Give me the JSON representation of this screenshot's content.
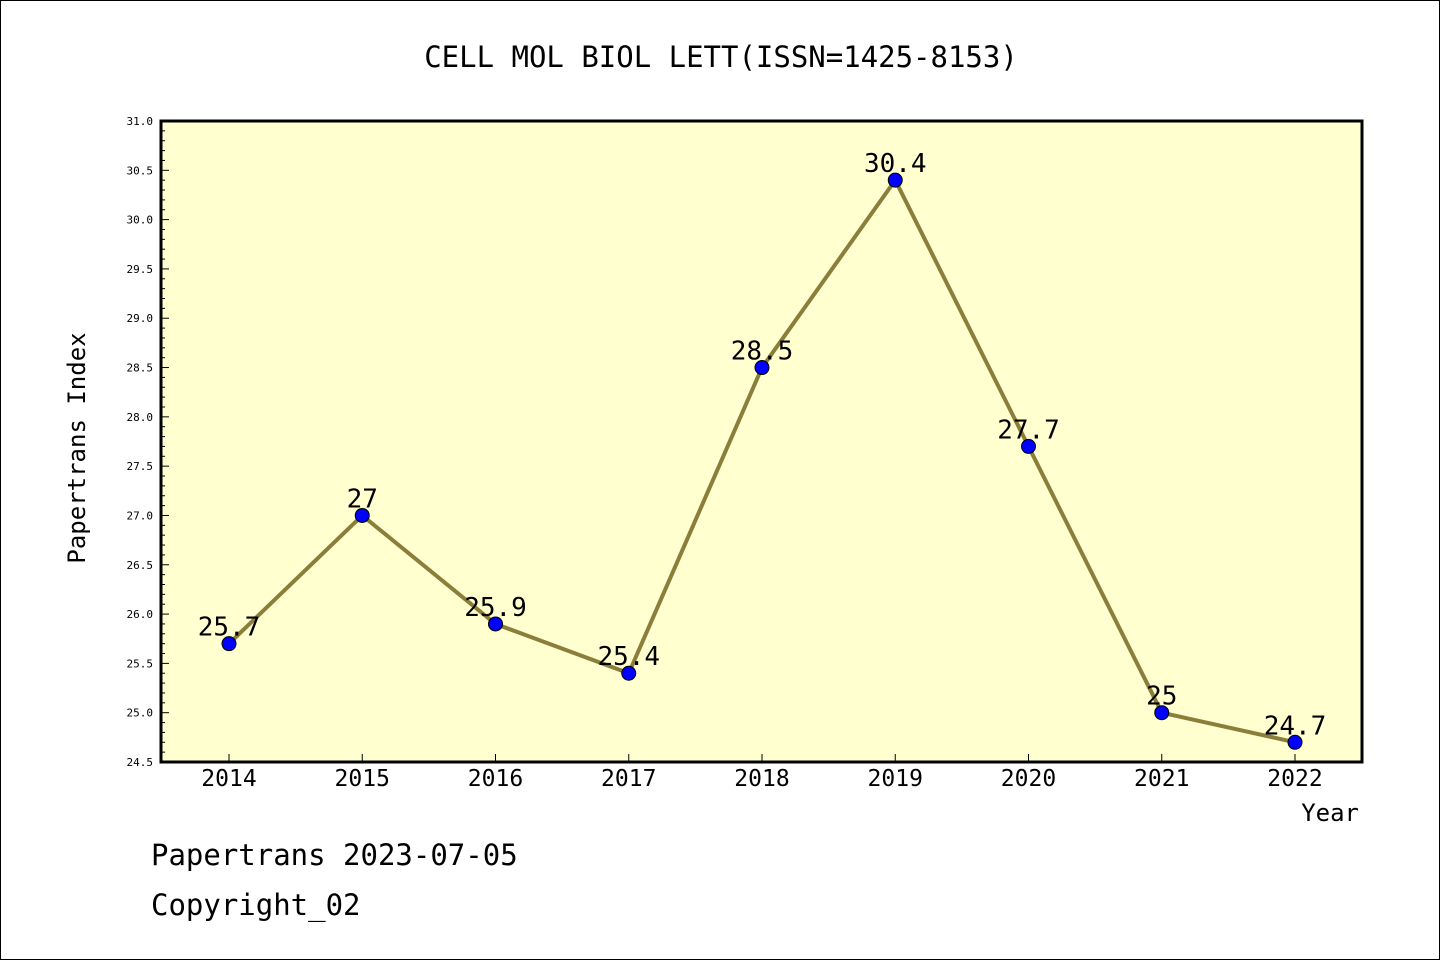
{
  "chart_data": {
    "type": "line",
    "title": "CELL MOL BIOL LETT(ISSN=1425-8153)",
    "xlabel": "Year",
    "ylabel": "Papertrans Index",
    "categories": [
      "2014",
      "2015",
      "2016",
      "2017",
      "2018",
      "2019",
      "2020",
      "2021",
      "2022"
    ],
    "values": [
      25.7,
      27,
      25.9,
      25.4,
      28.5,
      30.4,
      27.7,
      25,
      24.7
    ],
    "data_labels": [
      "25.7",
      "27",
      "25.9",
      "25.4",
      "28.5",
      "30.4",
      "27.7",
      "25",
      "24.7"
    ],
    "ylim": [
      24.5,
      31.0
    ],
    "yticks": [
      "24.5",
      "25.0",
      "25.5",
      "26.0",
      "26.5",
      "27.0",
      "27.5",
      "28.0",
      "28.5",
      "29.0",
      "29.5",
      "30.0",
      "30.5",
      "31.0"
    ],
    "grid": false,
    "colors": {
      "plot_background": "#ffffd0",
      "line": "#8b7d3a",
      "marker": "#0000ff"
    }
  },
  "footer": {
    "line1": "Papertrans 2023-07-05",
    "line2": "Copyright_02"
  }
}
